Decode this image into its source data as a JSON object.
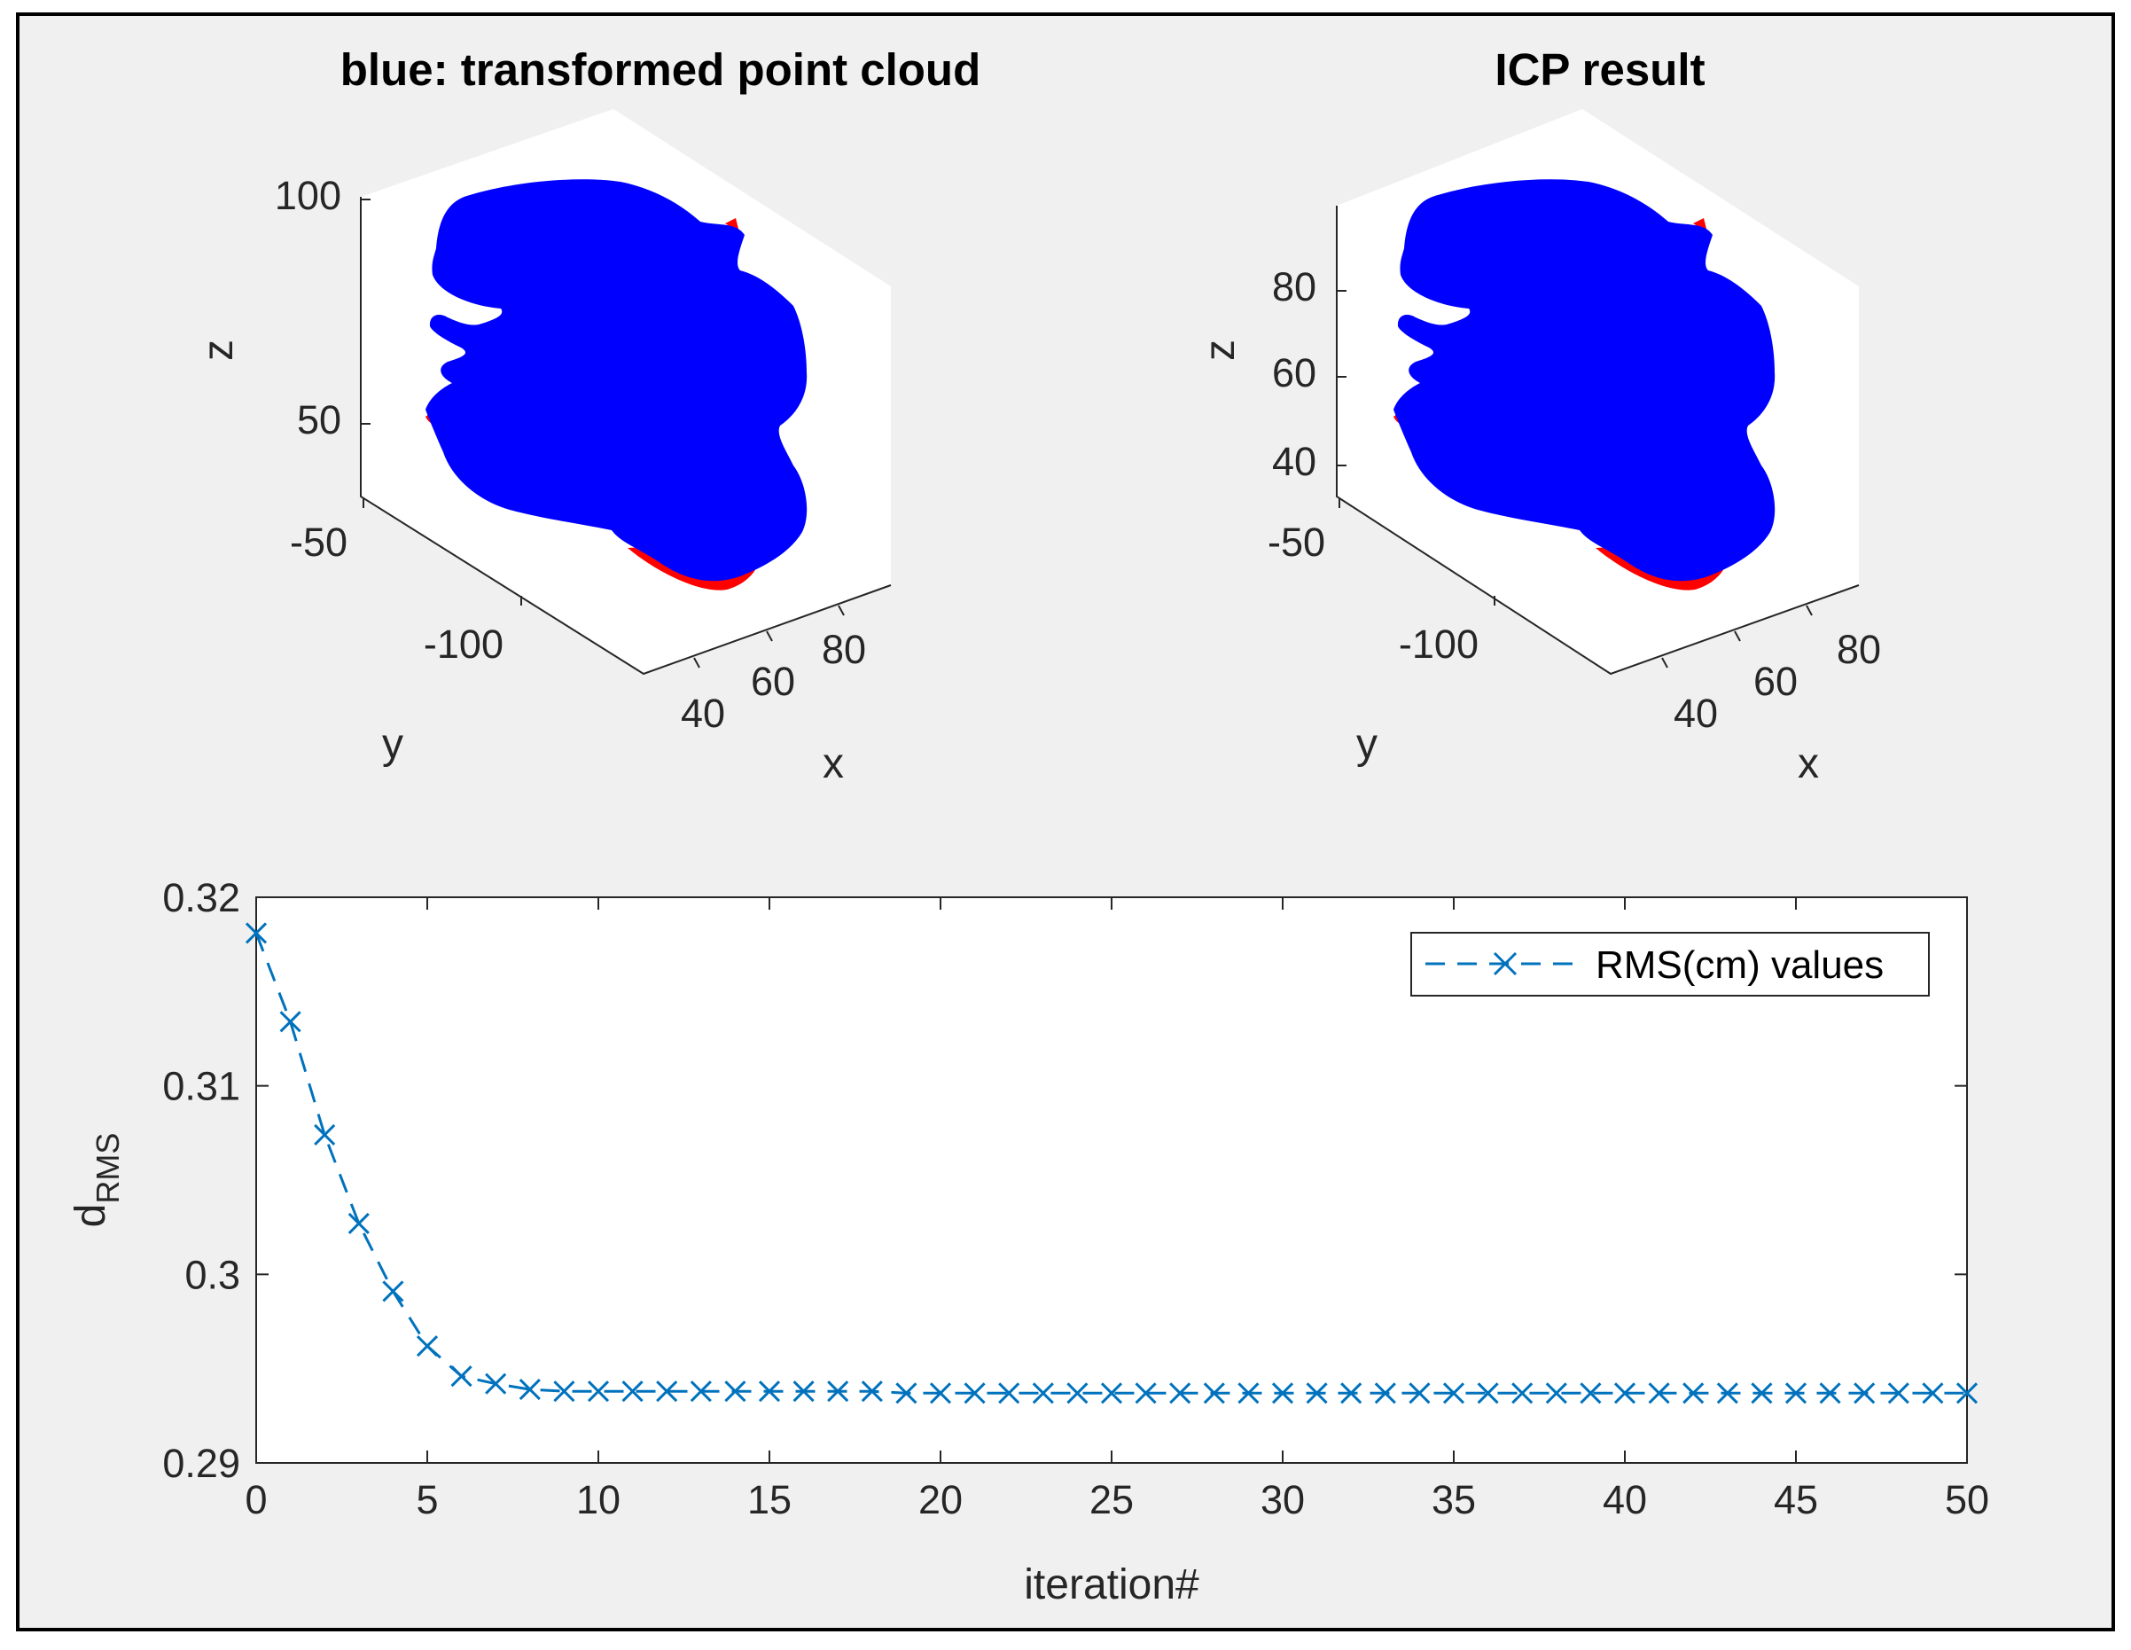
{
  "colors": {
    "figure_bg": "#f0f0f0",
    "axes_bg": "#ffffff",
    "transformed_cloud": "#0000ff",
    "reference_cloud": "#ff0000",
    "rms_line": "#0072bd"
  },
  "chart_data": [
    {
      "type": "scatter3d",
      "title": "blue: transformed point cloud",
      "xlabel": "x",
      "ylabel": "y",
      "zlabel": "z",
      "x_ticks": [
        "40",
        "60",
        "80"
      ],
      "y_ticks": [
        "-100",
        "-50"
      ],
      "z_ticks": [
        "50",
        "100"
      ],
      "series": [
        {
          "color": "#0000ff"
        },
        {
          "color": "#ff0000"
        }
      ]
    },
    {
      "type": "scatter3d",
      "title": "ICP result",
      "xlabel": "x",
      "ylabel": "y",
      "zlabel": "z",
      "x_ticks": [
        "40",
        "60",
        "80"
      ],
      "y_ticks": [
        "-100",
        "-50"
      ],
      "z_ticks": [
        "40",
        "60",
        "80"
      ],
      "series": [
        {
          "color": "#0000ff"
        },
        {
          "color": "#ff0000"
        }
      ]
    },
    {
      "type": "line",
      "title": "",
      "xlabel": "iteration#",
      "ylabel_main": "d",
      "ylabel_sub": "RMS",
      "xlim": [
        0,
        50
      ],
      "ylim": [
        0.29,
        0.32
      ],
      "x_ticks": [
        0,
        5,
        10,
        15,
        20,
        25,
        30,
        35,
        40,
        45,
        50
      ],
      "y_ticks": [
        0.29,
        0.3,
        0.31,
        0.32
      ],
      "y_tick_labels": [
        "0.29",
        "0.3",
        "0.31",
        "0.32"
      ],
      "legend_position": "top-right",
      "series": [
        {
          "name": "RMS(cm) values",
          "color": "#0072bd",
          "line_style": "dashed",
          "marker": "x",
          "x": [
            0,
            1,
            2,
            3,
            4,
            5,
            6,
            7,
            8,
            9,
            10,
            11,
            12,
            13,
            14,
            15,
            16,
            17,
            18,
            19,
            20,
            21,
            22,
            23,
            24,
            25,
            26,
            27,
            28,
            29,
            30,
            31,
            32,
            33,
            34,
            35,
            36,
            37,
            38,
            39,
            40,
            41,
            42,
            43,
            44,
            45,
            46,
            47,
            48,
            49,
            50
          ],
          "y": [
            0.3181,
            0.3134,
            0.3074,
            0.3027,
            0.2991,
            0.2962,
            0.2946,
            0.2942,
            0.2939,
            0.2938,
            0.2938,
            0.2938,
            0.2938,
            0.2938,
            0.2938,
            0.2938,
            0.2938,
            0.2938,
            0.2938,
            0.2937,
            0.2937,
            0.2937,
            0.2937,
            0.2937,
            0.2937,
            0.2937,
            0.2937,
            0.2937,
            0.2937,
            0.2937,
            0.2937,
            0.2937,
            0.2937,
            0.2937,
            0.2937,
            0.2937,
            0.2937,
            0.2937,
            0.2937,
            0.2937,
            0.2937,
            0.2937,
            0.2937,
            0.2937,
            0.2937,
            0.2937,
            0.2937,
            0.2937,
            0.2937,
            0.2937,
            0.2937
          ]
        }
      ]
    }
  ]
}
